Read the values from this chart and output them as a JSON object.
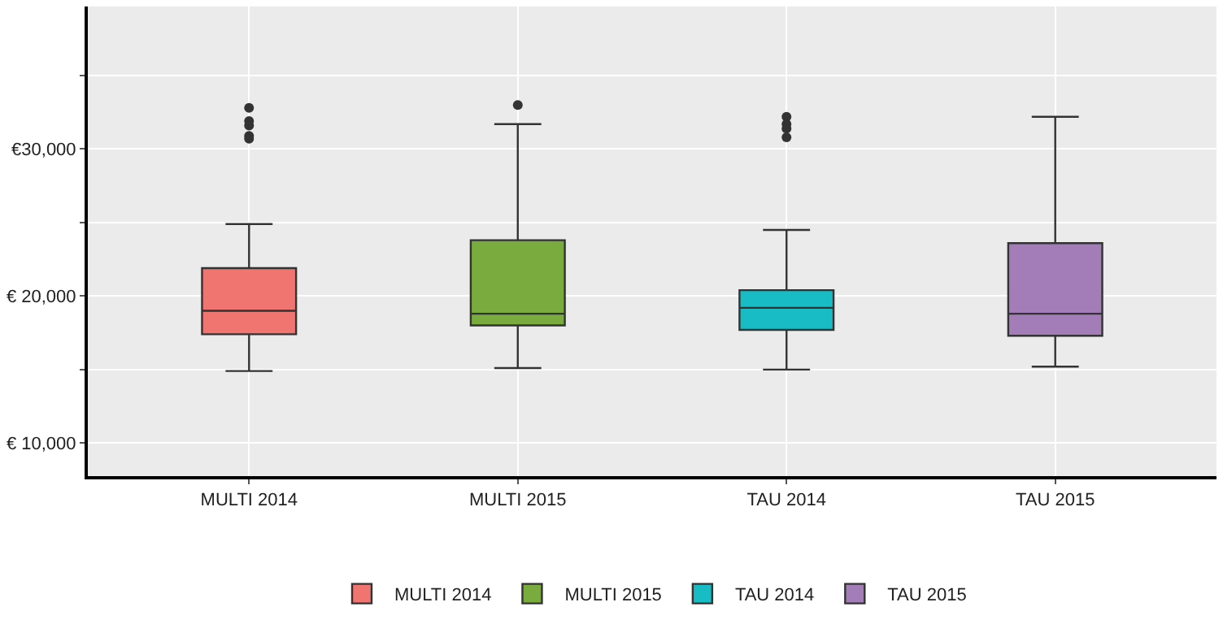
{
  "chart_data": {
    "type": "box",
    "categories": [
      "MULTI 2014",
      "MULTI 2015",
      "TAU 2014",
      "TAU 2015"
    ],
    "series": [
      {
        "name": "MULTI 2014",
        "color": "#f07570",
        "boxes": [
          {
            "low": 14900,
            "q1": 17400,
            "median": 19000,
            "q3": 21900,
            "high": 24900,
            "outliers": [
              32800,
              31900,
              31600,
              30900,
              30700
            ]
          },
          null,
          null,
          null
        ]
      },
      {
        "name": "MULTI 2015",
        "color": "#7aab3e",
        "boxes": [
          null,
          {
            "low": 15100,
            "q1": 18000,
            "median": 18800,
            "q3": 23800,
            "high": 31700,
            "outliers": [
              33000
            ]
          },
          null,
          null
        ]
      },
      {
        "name": "TAU 2014",
        "color": "#17bcc4",
        "boxes": [
          null,
          null,
          {
            "low": 15000,
            "q1": 17700,
            "median": 19200,
            "q3": 20400,
            "high": 24500,
            "outliers": [
              32200,
              31700,
              31400,
              30800
            ]
          },
          null
        ]
      },
      {
        "name": "TAU 2015",
        "color": "#a37db8",
        "boxes": [
          null,
          null,
          null,
          {
            "low": 15200,
            "q1": 17300,
            "median": 18800,
            "q3": 23600,
            "high": 32200
          }
        ]
      }
    ],
    "ylim": [
      7750,
      39700
    ],
    "yticks": [
      {
        "value": 10000,
        "label": "€ 10,000"
      },
      {
        "value": 15000,
        "label": null
      },
      {
        "value": 20000,
        "label": "€ 20,000"
      },
      {
        "value": 25000,
        "label": null
      },
      {
        "value": 30000,
        "label": "€30,000"
      },
      {
        "value": 35000,
        "label": null
      }
    ],
    "grid": true,
    "legend": "bottom"
  }
}
